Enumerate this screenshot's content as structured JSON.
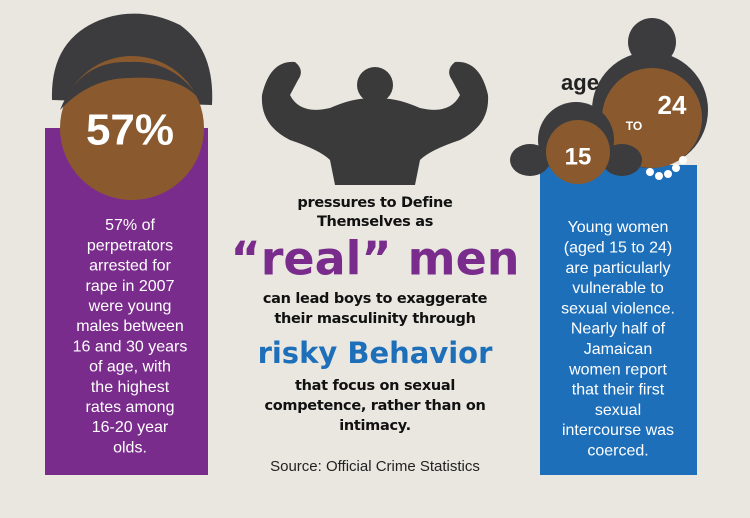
{
  "left": {
    "stat": "57%",
    "lines": [
      "57% of",
      "perpetrators",
      "arrested for",
      "rape in 2007",
      "were young",
      "males between",
      "16 and 30 years",
      "of age, with",
      "the highest",
      "rates among",
      "16-20 year",
      "olds."
    ]
  },
  "center": {
    "intro": [
      "pressures to Define",
      "Themselves as"
    ],
    "highlight": "“real” men",
    "middle": [
      "can lead boys to exaggerate",
      "their masculinity through"
    ],
    "emphasis": "risky Behavior",
    "outro": [
      "that focus on sexual",
      "competence, rather than on",
      "intimacy."
    ],
    "source": "Source: Official Crime Statistics"
  },
  "right": {
    "age_label": "age",
    "age_low": "15",
    "age_connector": "TO",
    "age_high": "24",
    "lines": [
      "Young women",
      "(aged 15 to 24)",
      "are particularly",
      "vulnerable to",
      "sexual violence.",
      "Nearly half of",
      "Jamaican",
      "women report",
      "that their first",
      "sexual",
      "intercourse was",
      "coerced."
    ]
  }
}
